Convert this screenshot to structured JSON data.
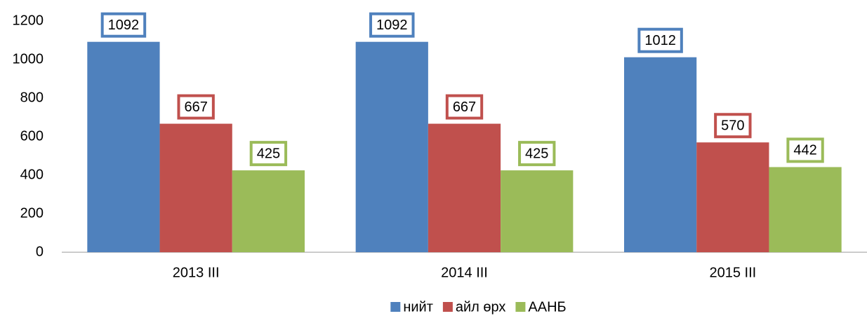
{
  "chart_data": {
    "type": "bar",
    "categories": [
      "2013 III",
      "2014 III",
      "2015 III"
    ],
    "series": [
      {
        "name": "нийт",
        "color": "#4f81bd",
        "values": [
          1092,
          1092,
          1012
        ]
      },
      {
        "name": "айл өрх",
        "color": "#c0504d",
        "values": [
          667,
          667,
          570
        ]
      },
      {
        "name": "ААНБ",
        "color": "#9bbb59",
        "values": [
          425,
          425,
          442
        ]
      }
    ],
    "ylim": [
      0,
      1200
    ],
    "yticks": [
      0,
      200,
      400,
      600,
      800,
      1000,
      1200
    ],
    "grid": false,
    "legend": "bottom"
  }
}
